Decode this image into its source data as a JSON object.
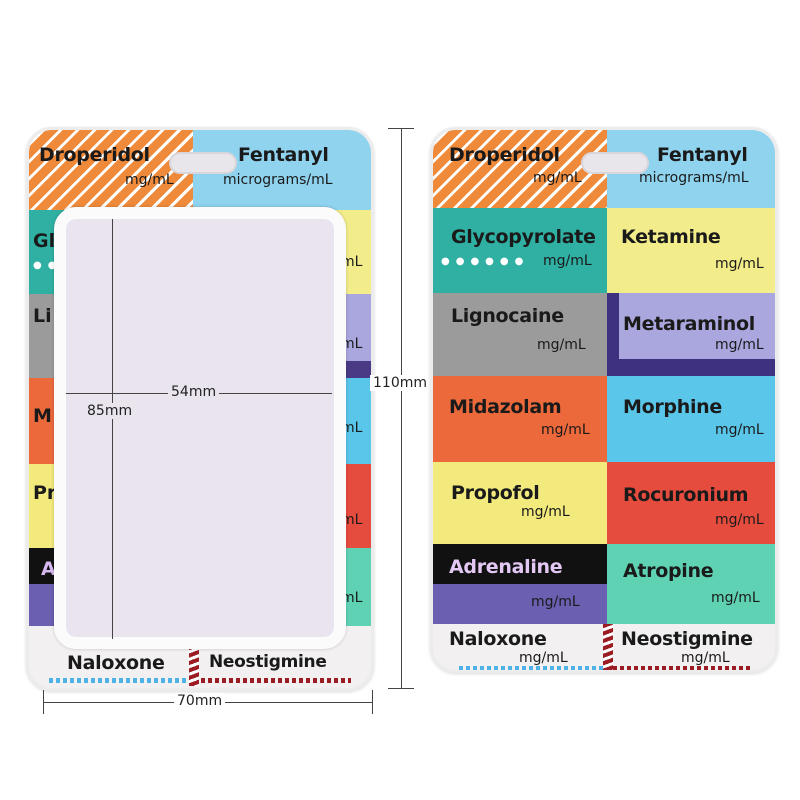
{
  "right_card": {
    "cells": [
      {
        "name": "Droperidol",
        "unit": "mg/mL",
        "color": "#ef8a3a"
      },
      {
        "name": "Fentanyl",
        "unit": "micrograms/mL",
        "color": "#8fd3ef"
      },
      {
        "name": "Glycopyrolate",
        "unit": "mg/mL",
        "color": "#2fb0a3"
      },
      {
        "name": "Ketamine",
        "unit": "mg/mL",
        "color": "#f3ec8a"
      },
      {
        "name": "Lignocaine",
        "unit": "mg/mL",
        "color": "#9b9b9b"
      },
      {
        "name": "Metaraminol",
        "unit": "mg/mL",
        "color": "#a9a7de"
      },
      {
        "name": "Midazolam",
        "unit": "mg/mL",
        "color": "#ec693c"
      },
      {
        "name": "Morphine",
        "unit": "mg/mL",
        "color": "#5ac6ea"
      },
      {
        "name": "Propofol",
        "unit": "mg/mL",
        "color": "#f2ea7c"
      },
      {
        "name": "Rocuronium",
        "unit": "mg/mL",
        "color": "#e64c3e"
      },
      {
        "name": "Adrenaline",
        "unit": "mg/mL",
        "color": "#6a5fb0"
      },
      {
        "name": "Atropine",
        "unit": "mg/mL",
        "color": "#5fd2b4"
      },
      {
        "name": "Naloxone",
        "unit": "mg/mL",
        "color": "#f2f0f0"
      },
      {
        "name": "Neostigmine",
        "unit": "mg/mL",
        "color": "#f2f0f0"
      }
    ]
  },
  "left_card": {
    "top": [
      {
        "name": "Droperidol",
        "unit": "mg/mL"
      },
      {
        "name": "Fentanyl",
        "unit": "micrograms/mL"
      }
    ],
    "left_fragments": [
      "Gl",
      "Li",
      "M",
      "Pr",
      "A"
    ],
    "right_fragment": "mL",
    "bottom": [
      {
        "name": "Naloxone"
      },
      {
        "name": "Neostigmine"
      }
    ]
  },
  "dimensions": {
    "width_inner": "54mm",
    "height_inner": "85mm",
    "height_outer": "110mm",
    "width_outer": "70mm"
  }
}
